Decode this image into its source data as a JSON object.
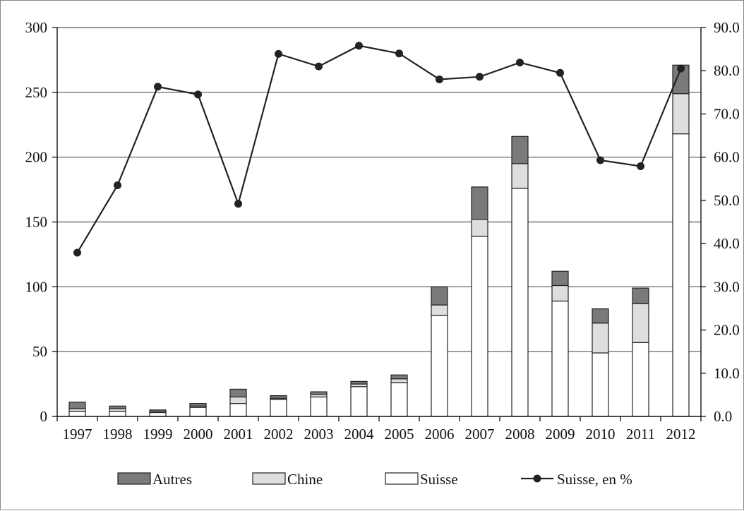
{
  "chart_data": {
    "type": "bar",
    "stacked": true,
    "categories": [
      "1997",
      "1998",
      "1999",
      "2000",
      "2001",
      "2002",
      "2003",
      "2004",
      "2005",
      "2006",
      "2007",
      "2008",
      "2009",
      "2010",
      "2011",
      "2012"
    ],
    "series": [
      {
        "name": "Suisse",
        "kind": "bar",
        "axis": "left",
        "color": "#ffffff",
        "values": [
          4,
          4,
          3,
          7,
          10,
          13,
          15,
          23,
          26,
          78,
          139,
          176,
          89,
          49,
          57,
          218
        ]
      },
      {
        "name": "Chine",
        "kind": "bar",
        "axis": "left",
        "color": "#dedede",
        "values": [
          2,
          2,
          1,
          1,
          5,
          1,
          2,
          2,
          3,
          8,
          13,
          19,
          12,
          23,
          30,
          31
        ]
      },
      {
        "name": "Autres",
        "kind": "bar",
        "axis": "left",
        "color": "#7a7a7a",
        "values": [
          5,
          2,
          1,
          2,
          6,
          2,
          2,
          2,
          3,
          14,
          25,
          21,
          11,
          11,
          12,
          22
        ]
      },
      {
        "name": "Suisse, en %",
        "kind": "line",
        "axis": "right",
        "color": "#222222",
        "values": [
          37.9,
          53.5,
          76.3,
          74.5,
          49.2,
          83.9,
          81.0,
          85.8,
          84.0,
          78.0,
          78.6,
          81.9,
          79.5,
          59.3,
          57.9,
          80.5
        ]
      }
    ],
    "left_axis": {
      "ylim": [
        0,
        300
      ],
      "ticks": [
        "0",
        "50",
        "100",
        "150",
        "200",
        "250",
        "300"
      ]
    },
    "right_axis": {
      "ylim": [
        0,
        90
      ],
      "ticks": [
        "0.0",
        "10.0",
        "20.0",
        "30.0",
        "40.0",
        "50.0",
        "60.0",
        "70.0",
        "80.0",
        "90.0"
      ]
    },
    "grid": true,
    "legend_position": "bottom",
    "legend": [
      {
        "label": "Autres",
        "type": "bar",
        "color": "#7a7a7a"
      },
      {
        "label": "Chine",
        "type": "bar",
        "color": "#dedede"
      },
      {
        "label": "Suisse",
        "type": "bar",
        "color": "#ffffff"
      },
      {
        "label": "Suisse, en %",
        "type": "line",
        "color": "#222222"
      }
    ]
  }
}
